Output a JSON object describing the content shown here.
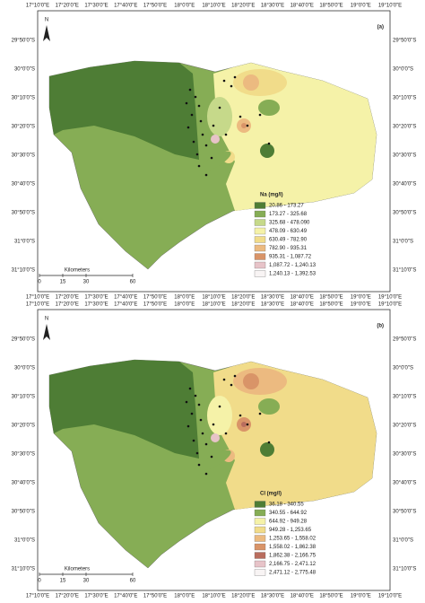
{
  "lon_labels": [
    "17°10'0\"E",
    "17°20'0\"E",
    "17°30'0\"E",
    "17°40'0\"E",
    "17°50'0\"E",
    "18°0'0\"E",
    "18°10'0\"E",
    "18°20'0\"E",
    "18°30'0\"E",
    "18°40'0\"E",
    "18°50'0\"E",
    "19°0'0\"E",
    "19°10'0\"E"
  ],
  "lat_labels": [
    "29°50'0\"S",
    "30°0'0\"S",
    "30°10'0\"S",
    "30°20'0\"S",
    "30°30'0\"S",
    "30°40'0\"S",
    "30°50'0\"S",
    "31°0'0\"S",
    "31°10'0\"S"
  ],
  "north": "N",
  "scale": {
    "title": "Kilometers",
    "ticks": [
      0,
      15,
      30,
      60
    ]
  },
  "panels": [
    {
      "label": "(a)",
      "legend": {
        "title": "Na (mg/l)",
        "entries": [
          {
            "text": "20.86 - 173.27",
            "color": "#4e7d35"
          },
          {
            "text": "173.27 - 325.68",
            "color": "#86ad55"
          },
          {
            "text": "325.68 - 478.090",
            "color": "#c6d98a"
          },
          {
            "text": "478.09 - 630.49",
            "color": "#f5f2a8"
          },
          {
            "text": "630.49 - 782.90",
            "color": "#f1dc8a"
          },
          {
            "text": "782.90 - 935.31",
            "color": "#ecba80"
          },
          {
            "text": "935.31 - 1,087.72",
            "color": "#d99468"
          },
          {
            "text": "1,087.72 - 1,240.13",
            "color": "#e7c3c8"
          },
          {
            "text": "1,240.13 - 1,392.53",
            "color": "#f8f4f4"
          }
        ]
      }
    },
    {
      "label": "(b)",
      "legend": {
        "title": "Cl (mg/l)",
        "entries": [
          {
            "text": "36.18 - 340.55",
            "color": "#4e7d35"
          },
          {
            "text": "340.55 - 644.92",
            "color": "#86ad55"
          },
          {
            "text": "644.92 - 949.28",
            "color": "#f5f2a8"
          },
          {
            "text": "949.28 - 1,253.65",
            "color": "#f1dc8a"
          },
          {
            "text": "1,253.65 - 1,558.02",
            "color": "#ecba80"
          },
          {
            "text": "1,558.02 - 1,862.38",
            "color": "#d99468"
          },
          {
            "text": "1,862.38 - 2,166.75",
            "color": "#b96d5e"
          },
          {
            "text": "2,166.75 - 2,471.12",
            "color": "#e7c3c8"
          },
          {
            "text": "2,471.12 - 2,775.48",
            "color": "#f8f4f4"
          }
        ]
      }
    }
  ]
}
